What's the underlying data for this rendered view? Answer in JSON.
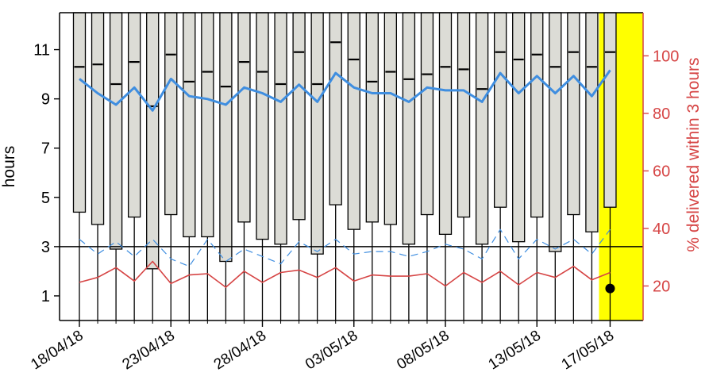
{
  "chart_data": {
    "type": "box-plot with line overlays",
    "ylabel_left": "hours",
    "ylabel_right": "% delivered within 3 hours",
    "ylim_left": [
      0,
      12.5
    ],
    "ylim_right": [
      8,
      115
    ],
    "yticks_left": [
      1,
      3,
      5,
      7,
      9,
      11
    ],
    "yticks_right": [
      20,
      40,
      60,
      80,
      100
    ],
    "reference_line_hours": 3,
    "x_tick_labels": [
      "18/04/18",
      "23/04/18",
      "28/04/18",
      "03/05/18",
      "08/05/18",
      "13/05/18",
      "17/05/18"
    ],
    "x_tick_days": [
      0,
      5,
      10,
      15,
      20,
      25,
      29
    ],
    "days": [
      "18/04/18",
      "19/04/18",
      "20/04/18",
      "21/04/18",
      "22/04/18",
      "23/04/18",
      "24/04/18",
      "25/04/18",
      "26/04/18",
      "27/04/18",
      "28/04/18",
      "29/04/18",
      "30/04/18",
      "01/05/18",
      "02/05/18",
      "03/05/18",
      "04/05/18",
      "05/05/18",
      "06/05/18",
      "07/05/18",
      "08/05/18",
      "09/05/18",
      "10/05/18",
      "11/05/18",
      "12/05/18",
      "13/05/18",
      "14/05/18",
      "15/05/18",
      "16/05/18",
      "17/05/18"
    ],
    "box_q1": [
      4.4,
      3.9,
      2.9,
      4.2,
      2.1,
      4.3,
      3.4,
      3.4,
      2.4,
      4.0,
      3.3,
      3.1,
      4.1,
      2.7,
      4.7,
      3.7,
      4.0,
      3.9,
      3.1,
      4.3,
      3.5,
      4.2,
      3.1,
      4.6,
      3.2,
      4.2,
      2.8,
      4.3,
      3.6,
      4.6
    ],
    "box_median": [
      10.3,
      10.4,
      9.6,
      10.5,
      8.7,
      10.8,
      9.7,
      10.1,
      9.5,
      10.5,
      10.1,
      9.6,
      10.9,
      9.6,
      11.3,
      10.6,
      9.7,
      10.1,
      9.8,
      10.0,
      10.3,
      10.2,
      9.4,
      10.9,
      10.6,
      10.8,
      10.3,
      10.9,
      10.3,
      10.9
    ],
    "box_q3": [
      12.5,
      12.5,
      12.5,
      12.5,
      12.5,
      12.5,
      12.5,
      12.5,
      12.5,
      12.5,
      12.5,
      12.5,
      12.5,
      12.5,
      12.5,
      12.5,
      12.5,
      12.5,
      12.5,
      12.5,
      12.5,
      12.5,
      12.5,
      12.5,
      12.5,
      12.5,
      12.5,
      12.5,
      12.5,
      12.5
    ],
    "whisker_low": [
      0,
      0,
      0,
      0,
      0,
      0,
      0,
      0,
      0,
      0,
      0,
      0,
      0,
      0,
      0,
      0,
      0,
      0,
      0,
      0,
      0,
      0,
      0,
      0,
      0,
      0,
      0,
      0,
      0,
      0
    ],
    "series": [
      {
        "color": "#3f8ee0",
        "axis": "right",
        "style": "solid",
        "values": [
          92,
          87,
          83,
          89,
          81,
          92,
          86,
          85,
          83,
          89,
          87,
          84,
          90,
          84,
          94,
          89,
          87,
          87,
          84,
          89,
          88,
          88,
          84,
          94,
          87,
          93,
          87,
          93,
          86,
          95
        ]
      },
      {
        "color": "#3f8ee0",
        "axis": "left",
        "style": "dashed",
        "values": [
          3.3,
          2.7,
          3.2,
          2.6,
          3.3,
          2.5,
          2.2,
          3.3,
          2.4,
          2.9,
          2.6,
          2.3,
          3.2,
          2.8,
          3.3,
          2.7,
          2.8,
          2.8,
          2.6,
          2.8,
          3.1,
          2.9,
          2.5,
          3.7,
          2.5,
          3.3,
          2.9,
          3.3,
          2.7,
          3.7
        ]
      },
      {
        "color": "#d64545",
        "axis": "left",
        "style": "solid",
        "values": [
          1.55,
          1.75,
          2.15,
          1.6,
          2.4,
          1.5,
          1.85,
          1.9,
          1.35,
          2.0,
          1.55,
          1.95,
          2.05,
          1.75,
          2.15,
          1.6,
          1.85,
          1.8,
          1.8,
          1.9,
          1.4,
          1.95,
          1.55,
          2.0,
          1.45,
          1.95,
          1.75,
          2.2,
          1.65,
          1.95
        ]
      }
    ],
    "highlight": {
      "day_index": 29,
      "color": "#ffff00",
      "marker_value_hours": 1.3,
      "marker_color": "#000000"
    },
    "colors": {
      "box_fill": "#dcdcd6",
      "box_stroke": "#000000",
      "right_axis": "#d64545"
    }
  }
}
